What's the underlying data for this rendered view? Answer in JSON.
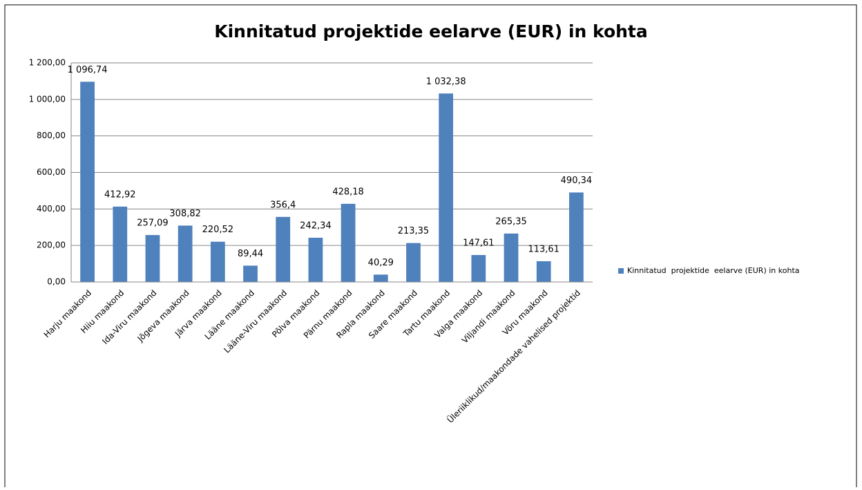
{
  "chart_data": {
    "type": "bar",
    "title": "Kinnitatud projektide eelarve (EUR) in kohta",
    "categories": [
      "Harju maakond",
      "Hiiu maakond",
      "Ida-Viru maakond",
      "Jõgeva maakond",
      "Järva maakond",
      "Lääne maakond",
      "Lääne-Viru maakond",
      "Põlva maakond",
      "Pärnu maakond",
      "Rapla maakond",
      "Saare maakond",
      "Tartu maakond",
      "Valga maakond",
      "Viljandi maakond",
      "Võru maakond",
      "Üleriiklikud/maakondade vahelised projektid"
    ],
    "series": [
      {
        "name": "Kinnitatud  projektide  eelarve (EUR) in kohta",
        "color": "#4f81bd",
        "values": [
          1096.74,
          412.92,
          257.09,
          308.82,
          220.52,
          89.44,
          356.4,
          242.34,
          428.18,
          40.29,
          213.35,
          1032.38,
          147.61,
          265.35,
          113.61,
          490.34
        ],
        "value_labels": [
          "1 096,74",
          "412,92",
          "257,09",
          "308,82",
          "220,52",
          "89,44",
          "356,4",
          "242,34",
          "428,18",
          "40,29",
          "213,35",
          "1 032,38",
          "147,61",
          "265,35",
          "113,61",
          "490,34"
        ]
      }
    ],
    "ylim": [
      0,
      1200
    ],
    "yticks": [
      {
        "value": 0,
        "label": "0,00"
      },
      {
        "value": 200,
        "label": "200,00"
      },
      {
        "value": 400,
        "label": "400,00"
      },
      {
        "value": 600,
        "label": "600,00"
      },
      {
        "value": 800,
        "label": "800,00"
      },
      {
        "value": 1000,
        "label": "1 000,00"
      },
      {
        "value": 1200,
        "label": "1 200,00"
      }
    ],
    "grid": true,
    "legend": "right"
  }
}
